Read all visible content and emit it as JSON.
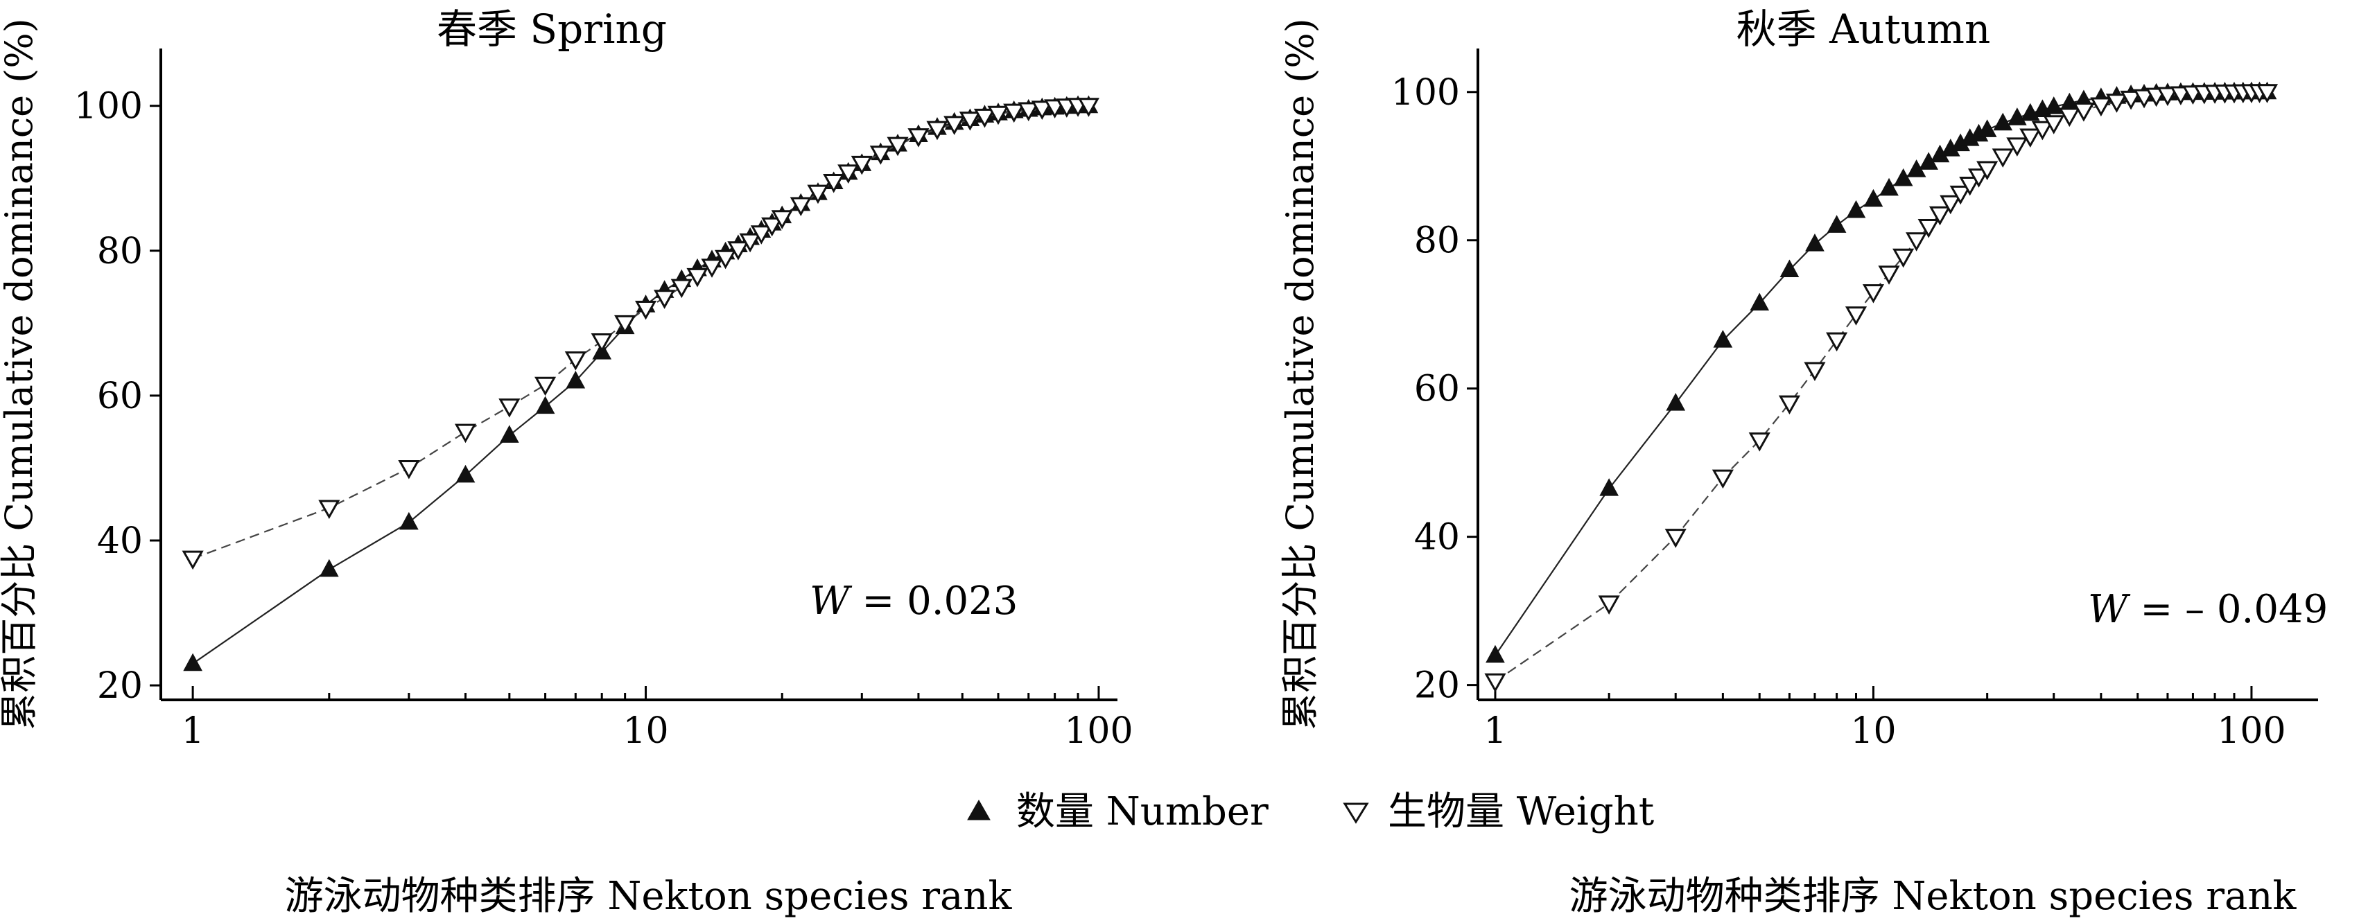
{
  "chart_data": [
    {
      "type": "scatter",
      "title": "春季 Spring",
      "ylabel": "累积百分比 Cumulative dominance (%)",
      "xlabel": "游泳动物种类排序 Nekton species rank",
      "xscale": "log",
      "xlim": [
        0.85,
        110
      ],
      "ylim": [
        18,
        106
      ],
      "xticks": [
        "1",
        "10",
        "100"
      ],
      "yticks": [
        "20",
        "40",
        "60",
        "80",
        "100"
      ],
      "annotation": {
        "var": "W",
        "text": " = 0.023"
      },
      "series": [
        {
          "name": "数量 Number",
          "marker": "filled-triangle-up",
          "x": [
            1,
            2,
            3,
            4,
            5,
            6,
            7,
            8,
            9,
            10,
            11,
            12,
            13,
            14,
            15,
            16,
            17,
            18,
            19,
            20,
            22,
            24,
            26,
            28,
            30,
            33,
            36,
            40,
            44,
            48,
            52,
            56,
            60,
            65,
            70,
            75,
            80,
            85,
            90,
            95
          ],
          "y": [
            23,
            36,
            42.5,
            49,
            54.5,
            58.5,
            62,
            66,
            69.5,
            72.5,
            74.5,
            76,
            77.5,
            78.7,
            79.8,
            80.8,
            81.8,
            82.8,
            83.8,
            84.8,
            86.5,
            88,
            89.5,
            90.8,
            92,
            93.5,
            94.7,
            96,
            97,
            97.7,
            98.2,
            98.7,
            99,
            99.3,
            99.5,
            99.7,
            99.8,
            99.9,
            100,
            100
          ]
        },
        {
          "name": "生物量 Weight",
          "marker": "open-triangle-down",
          "x": [
            1,
            2,
            3,
            4,
            5,
            6,
            7,
            8,
            9,
            10,
            11,
            12,
            13,
            14,
            15,
            16,
            17,
            18,
            19,
            20,
            22,
            24,
            26,
            28,
            30,
            33,
            36,
            40,
            44,
            48,
            52,
            56,
            60,
            65,
            70,
            75,
            80,
            85,
            90,
            95
          ],
          "y": [
            37.5,
            44.5,
            50,
            55,
            58.5,
            61.5,
            65,
            67.5,
            70,
            72,
            73.5,
            75,
            76.5,
            77.8,
            79,
            80.2,
            81.3,
            82.4,
            83.5,
            84.5,
            86.3,
            88,
            89.5,
            90.8,
            92,
            93.4,
            94.6,
            95.8,
            96.8,
            97.5,
            98.1,
            98.5,
            98.9,
            99.2,
            99.4,
            99.6,
            99.8,
            99.9,
            100,
            100
          ]
        }
      ]
    },
    {
      "type": "scatter",
      "title": "秋季 Autumn",
      "ylabel": "累积百分比 Cumulative dominance (%)",
      "xlabel": "游泳动物种类排序 Nekton species rank",
      "xscale": "log",
      "xlim": [
        0.9,
        150
      ],
      "ylim": [
        18,
        104
      ],
      "xticks": [
        "1",
        "10",
        "100"
      ],
      "yticks": [
        "20",
        "40",
        "60",
        "80",
        "100"
      ],
      "annotation": {
        "var": "W",
        "text": " = – 0.049"
      },
      "series": [
        {
          "name": "数量 Number",
          "marker": "filled-triangle-up",
          "x": [
            1,
            2,
            3,
            4,
            5,
            6,
            7,
            8,
            9,
            10,
            11,
            12,
            13,
            14,
            15,
            16,
            17,
            18,
            19,
            20,
            22,
            24,
            26,
            28,
            30,
            33,
            36,
            40,
            44,
            48,
            52,
            56,
            60,
            65,
            70,
            75,
            80,
            85,
            90,
            95,
            100,
            105,
            110
          ],
          "y": [
            24,
            46.5,
            58,
            66.5,
            71.5,
            76,
            79.5,
            82,
            84,
            85.5,
            87,
            88.3,
            89.5,
            90.5,
            91.5,
            92.3,
            93,
            93.7,
            94.3,
            94.9,
            95.8,
            96.5,
            97.1,
            97.6,
            98,
            98.5,
            98.9,
            99.2,
            99.4,
            99.6,
            99.7,
            99.8,
            99.85,
            99.9,
            99.92,
            99.94,
            99.96,
            99.97,
            99.98,
            99.99,
            100,
            100,
            100
          ]
        },
        {
          "name": "生物量 Weight",
          "marker": "open-triangle-down",
          "x": [
            1,
            2,
            3,
            4,
            5,
            6,
            7,
            8,
            9,
            10,
            11,
            12,
            13,
            14,
            15,
            16,
            17,
            18,
            19,
            20,
            22,
            24,
            26,
            28,
            30,
            33,
            36,
            40,
            44,
            48,
            52,
            56,
            60,
            65,
            70,
            75,
            80,
            85,
            90,
            95,
            100,
            105,
            110
          ],
          "y": [
            20.5,
            31,
            40,
            48,
            53,
            58,
            62.5,
            66.5,
            70,
            73,
            75.5,
            77.8,
            80,
            81.8,
            83.5,
            85,
            86.3,
            87.5,
            88.6,
            89.6,
            91.3,
            92.8,
            94,
            95,
            95.8,
            96.8,
            97.5,
            98.2,
            98.7,
            99.1,
            99.3,
            99.5,
            99.6,
            99.7,
            99.8,
            99.85,
            99.9,
            99.93,
            99.95,
            99.97,
            99.99,
            100,
            100
          ]
        }
      ]
    }
  ],
  "legend": [
    {
      "label": "数量 Number",
      "marker": "filled-triangle-up"
    },
    {
      "label": "生物量 Weight",
      "marker": "open-triangle-down"
    }
  ]
}
